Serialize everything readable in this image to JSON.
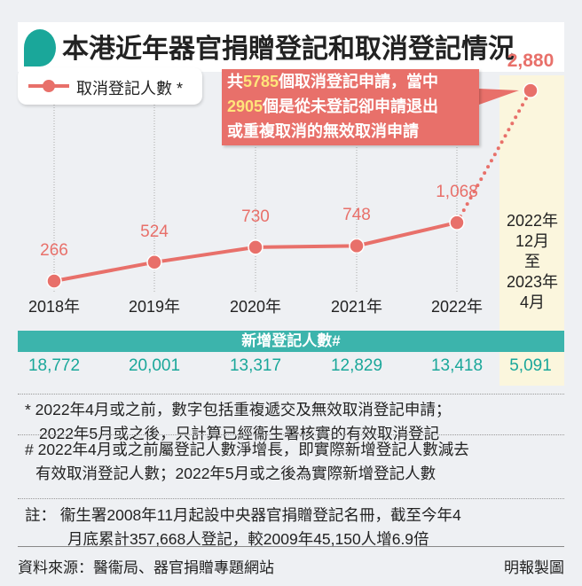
{
  "title": "本港近年器官捐贈登記和取消登記情況",
  "legend": "取消登記人數 *",
  "callout": {
    "l1a": "共",
    "l1n": "5785",
    "l1b": "個取消登記申請，當中",
    "l2n": "2905",
    "l2b": "個是從未登記卻申請退出",
    "l3": "或重複取消的無效取消申請"
  },
  "colors": {
    "line": "#e8706a",
    "teal": "#3cb4ac",
    "highlight": "#fbf6dd"
  },
  "chart_data": {
    "type": "line",
    "title": "本港近年器官捐贈登記和取消登記情況",
    "categories": [
      "2018年",
      "2019年",
      "2020年",
      "2021年",
      "2022年",
      "2022年12月至2023年4月"
    ],
    "series": [
      {
        "name": "取消登記人數 *",
        "values": [
          266,
          524,
          730,
          748,
          1068,
          2880
        ],
        "labels": [
          "266",
          "524",
          "730",
          "748",
          "1,068",
          "2,880"
        ]
      },
      {
        "name": "新增登記人數#",
        "values": [
          18772,
          20001,
          13317,
          12829,
          13418,
          5091
        ],
        "labels": [
          "18,772",
          "20,001",
          "13,317",
          "12,829",
          "13,418",
          "5,091"
        ]
      }
    ],
    "last_category_lines": [
      "2022年",
      "12月",
      "至",
      "2023年",
      "4月"
    ]
  },
  "registrations_header": "新增登記人數#",
  "notes": [
    "* 2022年4月或之前，數字包括重複遞交及無效取消登記申請；",
    "2022年5月或之後，只計算已經衞生署核實的有效取消登記",
    "# 2022年4月或之前屬登記人數淨增長，即實際新增登記人數減去",
    "有效取消登記人數；2022年5月或之後為實際新增登記人數",
    "註： 衞生署2008年11月起設中央器官捐贈登記名冊，截至今年4",
    "月底累計357,668人登記，較2009年45,150人增6.9倍"
  ],
  "source": "資料來源：醫衞局、器官捐贈專題網站",
  "credit": "明報製圖"
}
